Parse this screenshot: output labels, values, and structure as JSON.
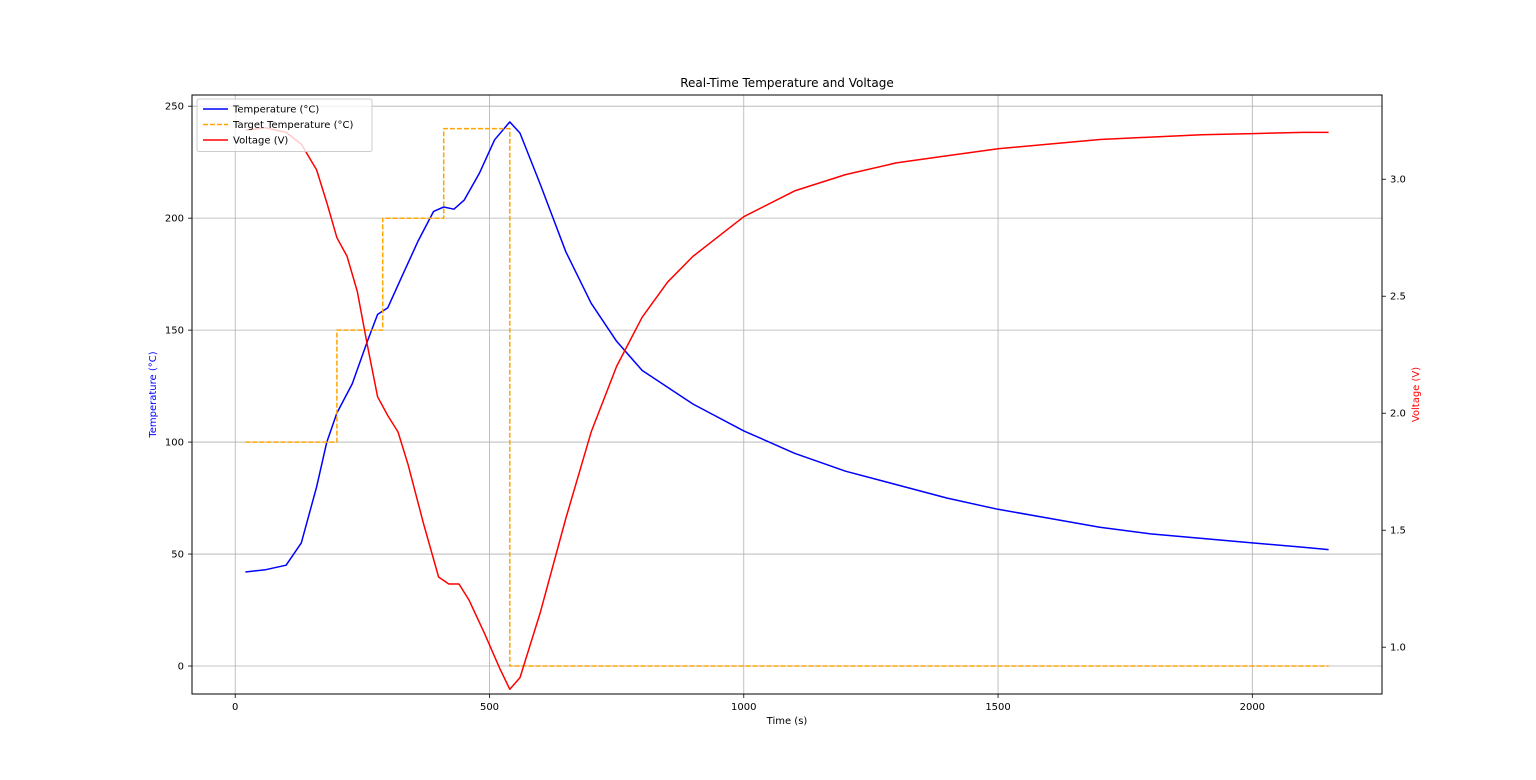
{
  "chart_data": {
    "type": "line",
    "title": "Real-Time Temperature and Voltage",
    "xlabel": "Time (s)",
    "ylabel_left": "Temperature (°C)",
    "ylabel_right": "Voltage (V)",
    "xlim": [
      -85,
      2255
    ],
    "ylim_left": [
      -12.5,
      255
    ],
    "ylim_right": [
      0.8,
      3.36
    ],
    "x_ticks": [
      0,
      500,
      1000,
      1500,
      2000
    ],
    "y_ticks_left": [
      0,
      50,
      100,
      150,
      200,
      250
    ],
    "y_ticks_right": [
      1.0,
      1.5,
      2.0,
      2.5,
      3.0
    ],
    "grid": true,
    "legend_position": "top-left",
    "colors": {
      "temperature": "#0000ff",
      "target": "#ffa500",
      "voltage": "#ff0000",
      "grid": "#b0b0b0"
    },
    "series": [
      {
        "name": "Temperature (°C)",
        "axis": "left",
        "style": "solid",
        "x": [
          20,
          60,
          100,
          130,
          160,
          180,
          200,
          230,
          260,
          280,
          300,
          330,
          360,
          390,
          410,
          430,
          450,
          480,
          510,
          540,
          560,
          600,
          650,
          700,
          750,
          800,
          900,
          1000,
          1100,
          1200,
          1300,
          1400,
          1500,
          1600,
          1700,
          1800,
          1900,
          2000,
          2100,
          2150
        ],
        "y": [
          42,
          43,
          45,
          55,
          80,
          100,
          113,
          126,
          145,
          157,
          160,
          175,
          190,
          203,
          205,
          204,
          208,
          220,
          235,
          243,
          238,
          215,
          185,
          162,
          145,
          132,
          117,
          105,
          95,
          87,
          81,
          75,
          70,
          66,
          62,
          59,
          57,
          55,
          53,
          52
        ]
      },
      {
        "name": "Target Temperature (°C)",
        "axis": "left",
        "style": "dashed",
        "x": [
          20,
          200,
          200,
          290,
          290,
          410,
          410,
          540,
          540,
          2150
        ],
        "y": [
          100,
          100,
          150,
          150,
          200,
          200,
          240,
          240,
          0,
          0
        ]
      },
      {
        "name": "Voltage (V)",
        "axis": "right",
        "style": "solid",
        "x": [
          20,
          60,
          100,
          130,
          160,
          180,
          200,
          220,
          240,
          260,
          280,
          300,
          320,
          340,
          370,
          400,
          420,
          440,
          460,
          490,
          520,
          540,
          560,
          600,
          650,
          700,
          750,
          800,
          850,
          900,
          1000,
          1100,
          1200,
          1300,
          1400,
          1500,
          1600,
          1700,
          1800,
          1900,
          2000,
          2100,
          2150
        ],
        "y": [
          3.21,
          3.22,
          3.2,
          3.15,
          3.04,
          2.9,
          2.75,
          2.67,
          2.52,
          2.29,
          2.07,
          1.99,
          1.92,
          1.78,
          1.53,
          1.3,
          1.27,
          1.27,
          1.2,
          1.06,
          0.91,
          0.82,
          0.87,
          1.15,
          1.55,
          1.92,
          2.2,
          2.41,
          2.56,
          2.67,
          2.84,
          2.95,
          3.02,
          3.07,
          3.1,
          3.13,
          3.15,
          3.17,
          3.18,
          3.19,
          3.195,
          3.2,
          3.2
        ]
      }
    ]
  }
}
